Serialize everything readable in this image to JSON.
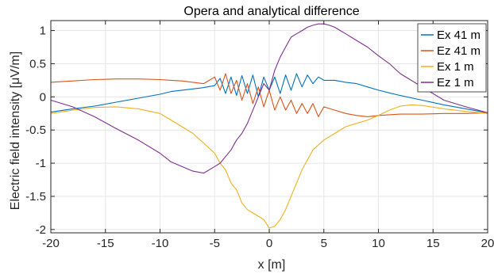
{
  "chart_data": {
    "type": "line",
    "title": "Opera and analytical difference",
    "xlabel": "x [m]",
    "ylabel_prefix": "Electric field intensity [",
    "ylabel_mu": "μ",
    "ylabel_suffix": "V/m]",
    "xlim": [
      -20,
      20
    ],
    "ylim": [
      -2.05,
      1.15
    ],
    "x_ticks": [
      -20,
      -15,
      -10,
      -5,
      0,
      5,
      10,
      15,
      20
    ],
    "y_ticks": [
      -2,
      -1.5,
      -1,
      -0.5,
      0,
      0.5,
      1
    ],
    "x_tick_labels": [
      "-20",
      "-15",
      "-10",
      "-5",
      "0",
      "5",
      "10",
      "15",
      "20"
    ],
    "y_tick_labels": [
      "-2",
      "-1.5",
      "-1",
      "-0.5",
      "0",
      "0.5",
      "1"
    ],
    "grid": true,
    "legend_position": "top-right",
    "series": [
      {
        "name": "Ex 41 m",
        "color": "#0072BD",
        "x": [
          -20,
          -18,
          -16,
          -14,
          -12,
          -10,
          -9,
          -8,
          -7,
          -6,
          -5,
          -4.5,
          -4,
          -3.5,
          -3,
          -2.5,
          -2,
          -1.5,
          -1,
          -0.5,
          0,
          0.5,
          1,
          1.5,
          2,
          2.5,
          3,
          3.5,
          4,
          4.5,
          5,
          6,
          7,
          8,
          9,
          10,
          11,
          12,
          14,
          16,
          18,
          20
        ],
        "y": [
          -0.23,
          -0.18,
          -0.14,
          -0.08,
          -0.02,
          0.04,
          0.08,
          0.1,
          0.12,
          0.14,
          0.17,
          0.28,
          0.05,
          0.3,
          0.02,
          0.32,
          0.05,
          0.33,
          0.0,
          0.3,
          0.1,
          0.3,
          0.05,
          0.33,
          0.1,
          0.35,
          0.15,
          0.33,
          0.2,
          0.3,
          0.25,
          0.25,
          0.22,
          0.2,
          0.15,
          0.1,
          0.06,
          0.02,
          -0.05,
          -0.12,
          -0.18,
          -0.24
        ]
      },
      {
        "name": "Ez 41 m",
        "color": "#D95319",
        "x": [
          -20,
          -18,
          -16,
          -14,
          -12,
          -10,
          -9,
          -8,
          -7,
          -6,
          -5,
          -4.5,
          -4,
          -3.5,
          -3,
          -2.5,
          -2,
          -1.5,
          -1,
          -0.5,
          0,
          0.5,
          1,
          1.5,
          2,
          2.5,
          3,
          3.5,
          4,
          4.5,
          5,
          6,
          7,
          8,
          9,
          10,
          11,
          12,
          14,
          16,
          18,
          20
        ],
        "y": [
          0.22,
          0.24,
          0.26,
          0.27,
          0.27,
          0.26,
          0.25,
          0.24,
          0.22,
          0.2,
          0.3,
          0.1,
          0.35,
          0.05,
          0.25,
          -0.05,
          0.2,
          -0.1,
          0.15,
          -0.15,
          0.1,
          -0.2,
          0.0,
          -0.2,
          -0.05,
          -0.25,
          -0.1,
          -0.25,
          -0.1,
          -0.3,
          -0.15,
          -0.2,
          -0.25,
          -0.28,
          -0.3,
          -0.28,
          -0.27,
          -0.26,
          -0.26,
          -0.25,
          -0.25,
          -0.24
        ]
      },
      {
        "name": "Ex 1 m",
        "color": "#EDB120",
        "x": [
          -20,
          -18,
          -16,
          -14,
          -12,
          -10,
          -9,
          -8,
          -7,
          -6,
          -5,
          -4.5,
          -4,
          -3.5,
          -3,
          -2.5,
          -2,
          -1.5,
          -1,
          -0.5,
          0,
          0.5,
          1,
          1.5,
          2,
          2.5,
          3,
          3.5,
          4,
          5,
          6,
          7,
          8,
          9,
          10,
          11,
          12,
          13,
          14,
          16,
          18,
          20
        ],
        "y": [
          -0.25,
          -0.2,
          -0.16,
          -0.15,
          -0.18,
          -0.25,
          -0.35,
          -0.45,
          -0.55,
          -0.7,
          -0.85,
          -1.0,
          -1.1,
          -1.3,
          -1.4,
          -1.6,
          -1.7,
          -1.75,
          -1.8,
          -1.85,
          -1.98,
          -1.95,
          -1.85,
          -1.7,
          -1.5,
          -1.3,
          -1.1,
          -0.95,
          -0.8,
          -0.65,
          -0.55,
          -0.45,
          -0.4,
          -0.35,
          -0.28,
          -0.2,
          -0.14,
          -0.12,
          -0.13,
          -0.18,
          -0.22,
          -0.25
        ]
      },
      {
        "name": "Ez 1 m",
        "color": "#7E2F8E",
        "x": [
          -20,
          -18,
          -16,
          -14,
          -12,
          -10,
          -9,
          -8,
          -7,
          -6,
          -5,
          -4.5,
          -4,
          -3.5,
          -3,
          -2.5,
          -2,
          -1.5,
          -1,
          -0.5,
          0,
          0.5,
          1,
          1.5,
          2,
          2.5,
          3,
          3.5,
          4,
          4.5,
          5,
          5.5,
          6,
          6.5,
          7,
          8,
          9,
          10,
          11,
          12,
          14,
          16,
          18,
          20
        ],
        "y": [
          -0.05,
          -0.15,
          -0.3,
          -0.48,
          -0.65,
          -0.85,
          -0.98,
          -1.05,
          -1.12,
          -1.15,
          -1.05,
          -1.0,
          -0.9,
          -0.8,
          -0.65,
          -0.55,
          -0.4,
          -0.2,
          0.0,
          0.2,
          0.1,
          0.4,
          0.6,
          0.75,
          0.9,
          0.95,
          1.0,
          1.05,
          1.08,
          1.1,
          1.1,
          1.08,
          1.05,
          1.0,
          0.95,
          0.85,
          0.75,
          0.62,
          0.5,
          0.35,
          0.15,
          -0.05,
          -0.15,
          -0.24
        ]
      }
    ]
  }
}
